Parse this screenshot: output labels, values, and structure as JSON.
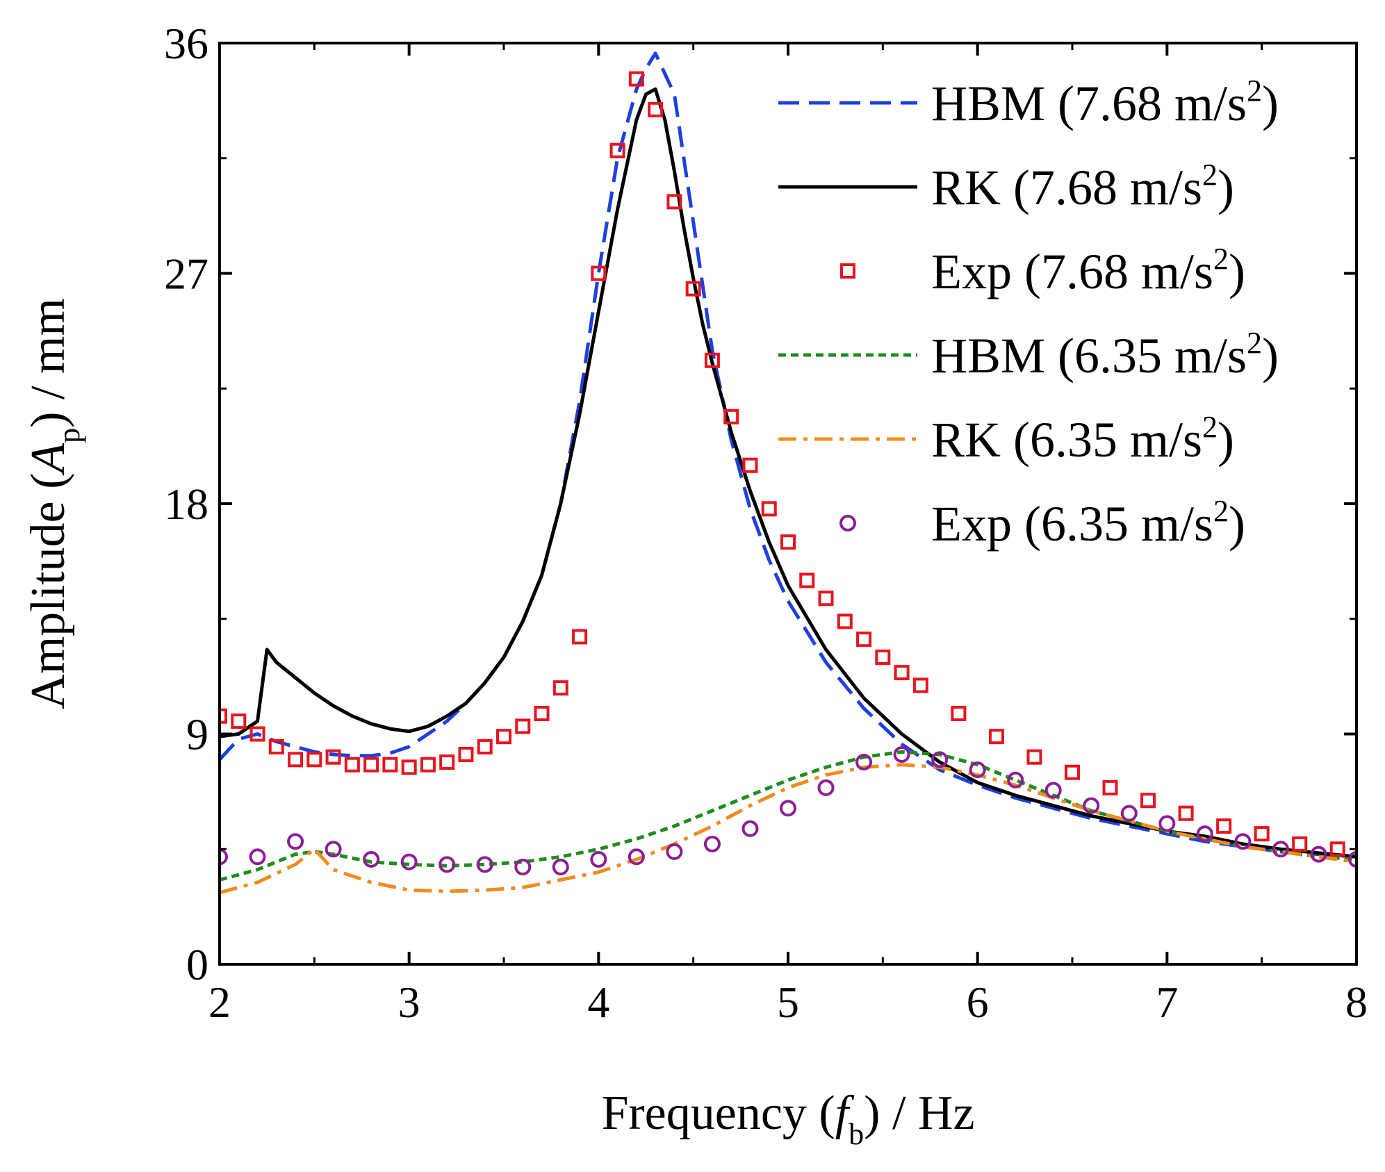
{
  "chart_data": {
    "type": "line",
    "xlabel": {
      "prefix": "Frequency (",
      "symbol": "f",
      "subscript": "b",
      "suffix": ") / Hz"
    },
    "ylabel": {
      "prefix": "Amplitude (",
      "symbol": "A",
      "subscript": "p",
      "suffix": ") / mm"
    },
    "xlim": [
      2,
      8
    ],
    "ylim": [
      0,
      36
    ],
    "xticks": [
      2,
      3,
      4,
      5,
      6,
      7,
      8
    ],
    "yticks": [
      0,
      9,
      18,
      27,
      36
    ],
    "grid": false,
    "legend_position": "top-right",
    "series": [
      {
        "name": "HBM (7.68 m/s2)",
        "label_main": "HBM (7.68 m/s",
        "label_sup": "2",
        "label_end": ")",
        "kind": "line",
        "color": "#1f3fe0",
        "dash": "dashed",
        "x": [
          2.0,
          2.1,
          2.2,
          2.3,
          2.4,
          2.5,
          2.6,
          2.7,
          2.8,
          2.9,
          3.0,
          3.1,
          3.2,
          3.3,
          3.4,
          3.5,
          3.6,
          3.7,
          3.8,
          3.9,
          4.0,
          4.1,
          4.2,
          4.25,
          4.3,
          4.35,
          4.4,
          4.45,
          4.5,
          4.55,
          4.6,
          4.7,
          4.8,
          4.9,
          5.0,
          5.2,
          5.4,
          5.6,
          5.8,
          6.0,
          6.2,
          6.4,
          6.6,
          6.8,
          7.0,
          7.2,
          7.4,
          7.6,
          7.8,
          8.0
        ],
        "y": [
          8.0,
          8.8,
          9.0,
          8.7,
          8.5,
          8.3,
          8.2,
          8.15,
          8.15,
          8.25,
          8.5,
          9.0,
          9.5,
          10.2,
          11.0,
          12.0,
          13.4,
          15.2,
          18.0,
          22.0,
          27.0,
          31.5,
          34.2,
          35.0,
          35.6,
          34.8,
          34.0,
          31.5,
          29.0,
          26.5,
          24.0,
          20.5,
          17.8,
          15.8,
          14.2,
          11.8,
          10.0,
          8.6,
          7.6,
          7.0,
          6.5,
          6.1,
          5.7,
          5.4,
          5.1,
          4.8,
          4.6,
          4.4,
          4.3,
          4.2
        ]
      },
      {
        "name": "RK (7.68 m/s2)",
        "label_main": "RK (7.68 m/s",
        "label_sup": "2",
        "label_end": ")",
        "kind": "line",
        "color": "#000000",
        "dash": "solid",
        "x": [
          2.0,
          2.1,
          2.2,
          2.25,
          2.3,
          2.4,
          2.5,
          2.6,
          2.7,
          2.8,
          2.9,
          3.0,
          3.1,
          3.2,
          3.3,
          3.4,
          3.5,
          3.6,
          3.7,
          3.8,
          3.9,
          4.0,
          4.1,
          4.2,
          4.25,
          4.3,
          4.35,
          4.4,
          4.45,
          4.5,
          4.55,
          4.6,
          4.7,
          4.8,
          4.9,
          5.0,
          5.2,
          5.4,
          5.6,
          5.8,
          6.0,
          6.2,
          6.4,
          6.6,
          6.8,
          7.0,
          7.2,
          7.4,
          7.6,
          7.8,
          8.0
        ],
        "y": [
          8.9,
          9.0,
          9.5,
          12.3,
          11.8,
          11.2,
          10.6,
          10.1,
          9.7,
          9.4,
          9.2,
          9.1,
          9.3,
          9.7,
          10.2,
          11.0,
          12.0,
          13.4,
          15.2,
          18.0,
          21.5,
          25.5,
          29.5,
          33.0,
          34.0,
          34.2,
          33.0,
          31.0,
          28.8,
          26.8,
          25.0,
          23.5,
          20.8,
          18.5,
          16.5,
          14.8,
          12.3,
          10.4,
          9.0,
          7.9,
          7.1,
          6.6,
          6.2,
          5.8,
          5.5,
          5.2,
          5.0,
          4.7,
          4.5,
          4.35,
          4.2
        ]
      },
      {
        "name": "Exp (7.68 m/s2)",
        "label_main": "Exp (7.68 m/s",
        "label_sup": "2",
        "label_end": ")",
        "kind": "marker",
        "marker": "square",
        "color": "#e8141e",
        "x": [
          2.0,
          2.1,
          2.2,
          2.3,
          2.4,
          2.5,
          2.6,
          2.7,
          2.8,
          2.9,
          3.0,
          3.1,
          3.2,
          3.3,
          3.4,
          3.5,
          3.6,
          3.7,
          3.8,
          3.9,
          4.0,
          4.1,
          4.2,
          4.3,
          4.4,
          4.5,
          4.6,
          4.7,
          4.8,
          4.9,
          5.0,
          5.1,
          5.2,
          5.3,
          5.4,
          5.5,
          5.6,
          5.7,
          5.9,
          6.1,
          6.3,
          6.5,
          6.7,
          6.9,
          7.1,
          7.3,
          7.5,
          7.7,
          7.9
        ],
        "y": [
          9.7,
          9.5,
          9.0,
          8.5,
          8.0,
          8.0,
          8.1,
          7.8,
          7.8,
          7.8,
          7.7,
          7.8,
          7.9,
          8.2,
          8.5,
          8.9,
          9.3,
          9.8,
          10.8,
          12.8,
          27.0,
          31.8,
          34.6,
          33.4,
          29.8,
          26.4,
          23.6,
          21.4,
          19.5,
          17.8,
          16.5,
          15.0,
          14.3,
          13.4,
          12.7,
          12.0,
          11.4,
          10.9,
          9.8,
          8.9,
          8.1,
          7.5,
          6.9,
          6.4,
          5.9,
          5.4,
          5.1,
          4.7,
          4.5
        ]
      },
      {
        "name": "HBM (6.35 m/s2)",
        "label_main": "HBM (6.35 m/s",
        "label_sup": "2",
        "label_end": ")",
        "kind": "line",
        "color": "#1e8c1e",
        "dash": "dotted",
        "x": [
          2.0,
          2.2,
          2.4,
          2.5,
          2.6,
          2.8,
          3.0,
          3.2,
          3.4,
          3.6,
          3.8,
          4.0,
          4.2,
          4.4,
          4.6,
          4.8,
          5.0,
          5.2,
          5.4,
          5.6,
          5.8,
          6.0,
          6.2,
          6.4,
          6.6,
          6.8,
          7.0,
          7.2,
          7.4,
          7.6,
          7.8,
          8.0
        ],
        "y": [
          3.3,
          3.7,
          4.3,
          4.4,
          4.3,
          4.0,
          3.9,
          3.85,
          3.9,
          4.0,
          4.2,
          4.5,
          4.9,
          5.4,
          6.0,
          6.6,
          7.2,
          7.7,
          8.1,
          8.3,
          8.2,
          7.8,
          7.2,
          6.6,
          6.0,
          5.6,
          5.2,
          4.9,
          4.6,
          4.4,
          4.2,
          4.1
        ]
      },
      {
        "name": "RK (6.35 m/s2)",
        "label_main": "RK (6.35 m/s",
        "label_sup": "2",
        "label_end": ")",
        "kind": "line",
        "color": "#f08c1e",
        "dash": "dashdot",
        "x": [
          2.0,
          2.2,
          2.4,
          2.5,
          2.6,
          2.8,
          3.0,
          3.2,
          3.4,
          3.6,
          3.8,
          4.0,
          4.2,
          4.4,
          4.6,
          4.8,
          5.0,
          5.2,
          5.4,
          5.6,
          5.8,
          6.0,
          6.2,
          6.4,
          6.6,
          6.8,
          7.0,
          7.2,
          7.4,
          7.6,
          7.8,
          8.0
        ],
        "y": [
          2.8,
          3.2,
          3.9,
          4.5,
          3.7,
          3.2,
          2.9,
          2.85,
          2.9,
          3.0,
          3.3,
          3.6,
          4.1,
          4.7,
          5.4,
          6.2,
          6.9,
          7.4,
          7.7,
          7.8,
          7.7,
          7.4,
          7.0,
          6.5,
          6.0,
          5.6,
          5.2,
          4.9,
          4.6,
          4.4,
          4.2,
          4.0
        ]
      },
      {
        "name": "Exp (6.35 m/s2)",
        "label_main": "Exp (6.35 m/s",
        "label_sup": "2",
        "label_end": ")",
        "kind": "marker",
        "marker": "circle",
        "color": "#8c1e96",
        "x": [
          2.0,
          2.2,
          2.4,
          2.6,
          2.8,
          3.0,
          3.2,
          3.4,
          3.6,
          3.8,
          4.0,
          4.2,
          4.4,
          4.6,
          4.8,
          5.0,
          5.2,
          5.4,
          5.6,
          5.8,
          6.0,
          6.2,
          6.4,
          6.6,
          6.8,
          7.0,
          7.2,
          7.4,
          7.6,
          7.8,
          8.0
        ],
        "y": [
          4.2,
          4.2,
          4.8,
          4.5,
          4.1,
          4.0,
          3.9,
          3.9,
          3.8,
          3.8,
          4.1,
          4.2,
          4.4,
          4.7,
          5.3,
          6.1,
          6.9,
          7.9,
          8.2,
          8.0,
          7.6,
          7.2,
          6.8,
          6.2,
          5.9,
          5.5,
          5.1,
          4.8,
          4.5,
          4.3,
          4.1
        ]
      }
    ]
  }
}
